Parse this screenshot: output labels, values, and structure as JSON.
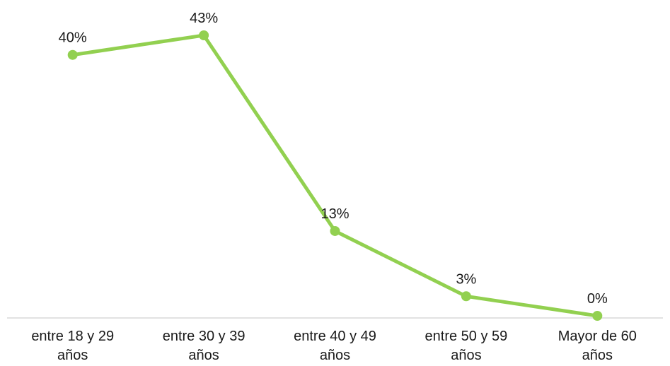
{
  "chart_data": {
    "type": "line",
    "categories": [
      [
        "entre 18 y 29",
        "años"
      ],
      [
        "entre 30 y 39",
        "años"
      ],
      [
        "entre 40 y 49",
        "años"
      ],
      [
        "entre 50 y 59",
        "años"
      ],
      [
        "Mayor de 60",
        "años"
      ]
    ],
    "series": [
      {
        "values": [
          40,
          43,
          13,
          3,
          0
        ],
        "data_labels": [
          "40%",
          "43%",
          "13%",
          "3%",
          "0%"
        ],
        "color": "#92D050"
      }
    ],
    "y_unit": "%",
    "ylim": [
      0,
      45
    ],
    "grid": false,
    "legend": "none",
    "axis_color": "#d9d9d9"
  }
}
